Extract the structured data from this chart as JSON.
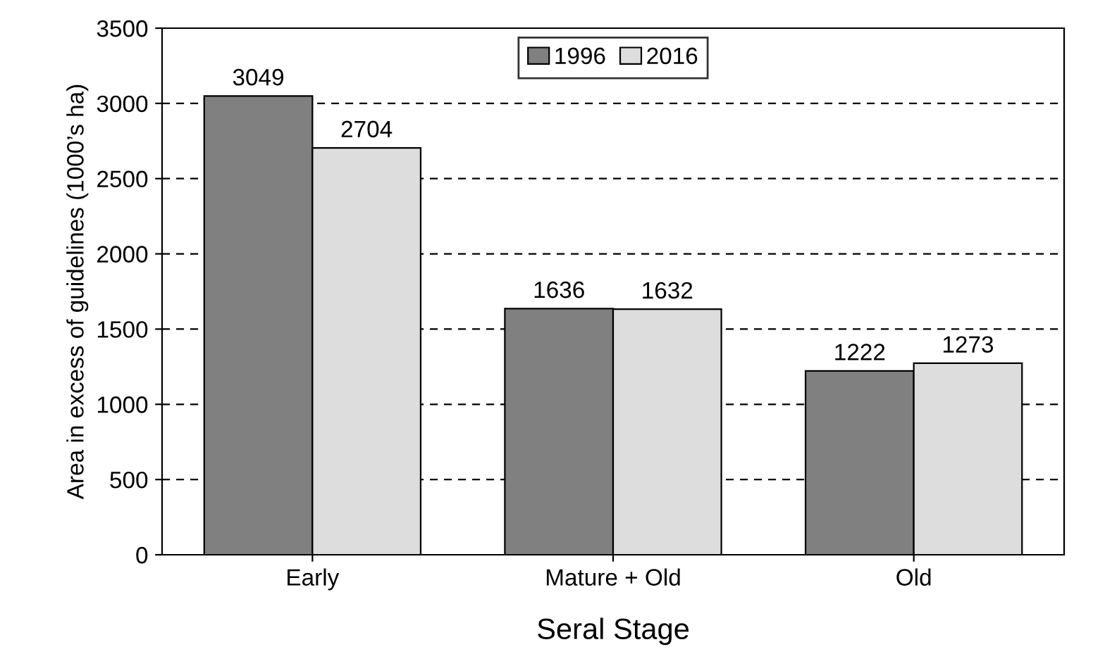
{
  "chart_data": {
    "type": "bar",
    "xlabel": "Seral Stage",
    "ylabel": "Area in excess of guidelines (1000’s ha)",
    "categories": [
      "Early",
      "Mature + Old",
      "Old"
    ],
    "series": [
      {
        "name": "1996",
        "color": "#808080",
        "values": [
          3049,
          1636,
          1222
        ]
      },
      {
        "name": "2016",
        "color": "#dddddd",
        "values": [
          2704,
          1632,
          1273
        ]
      }
    ],
    "ylim": [
      0,
      3500
    ],
    "yticks": [
      0,
      500,
      1000,
      1500,
      2000,
      2500,
      3000,
      3500
    ],
    "grid": "y",
    "legend": "top",
    "data_labels": true
  }
}
